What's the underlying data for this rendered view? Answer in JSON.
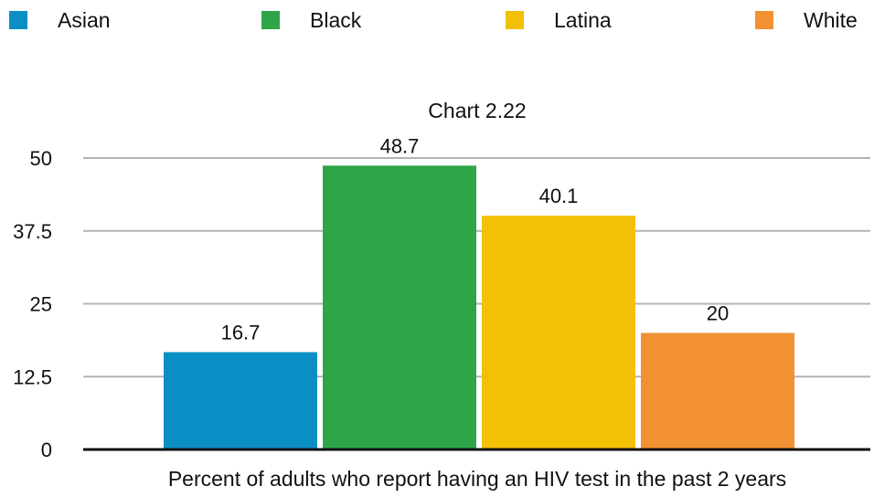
{
  "chart_data": {
    "type": "bar",
    "title": "Chart 2.22",
    "xlabel": "Percent of adults who report having an HIV test in the past 2 years",
    "ylabel": "",
    "ylim": [
      0,
      50
    ],
    "yticks": [
      "0",
      "12.5",
      "25",
      "37.5",
      "50"
    ],
    "ytick_values": [
      0,
      12.5,
      25,
      37.5,
      50
    ],
    "grid": true,
    "legend_position": "top",
    "categories": [
      "Asian",
      "Black",
      "Latina",
      "White"
    ],
    "values": [
      16.7,
      48.7,
      40.1,
      20
    ],
    "data_labels": [
      "16.7",
      "48.7",
      "40.1",
      "20"
    ],
    "colors": [
      "#0b8ec4",
      "#2fa54a",
      "#f2c004",
      "#f29132"
    ]
  }
}
